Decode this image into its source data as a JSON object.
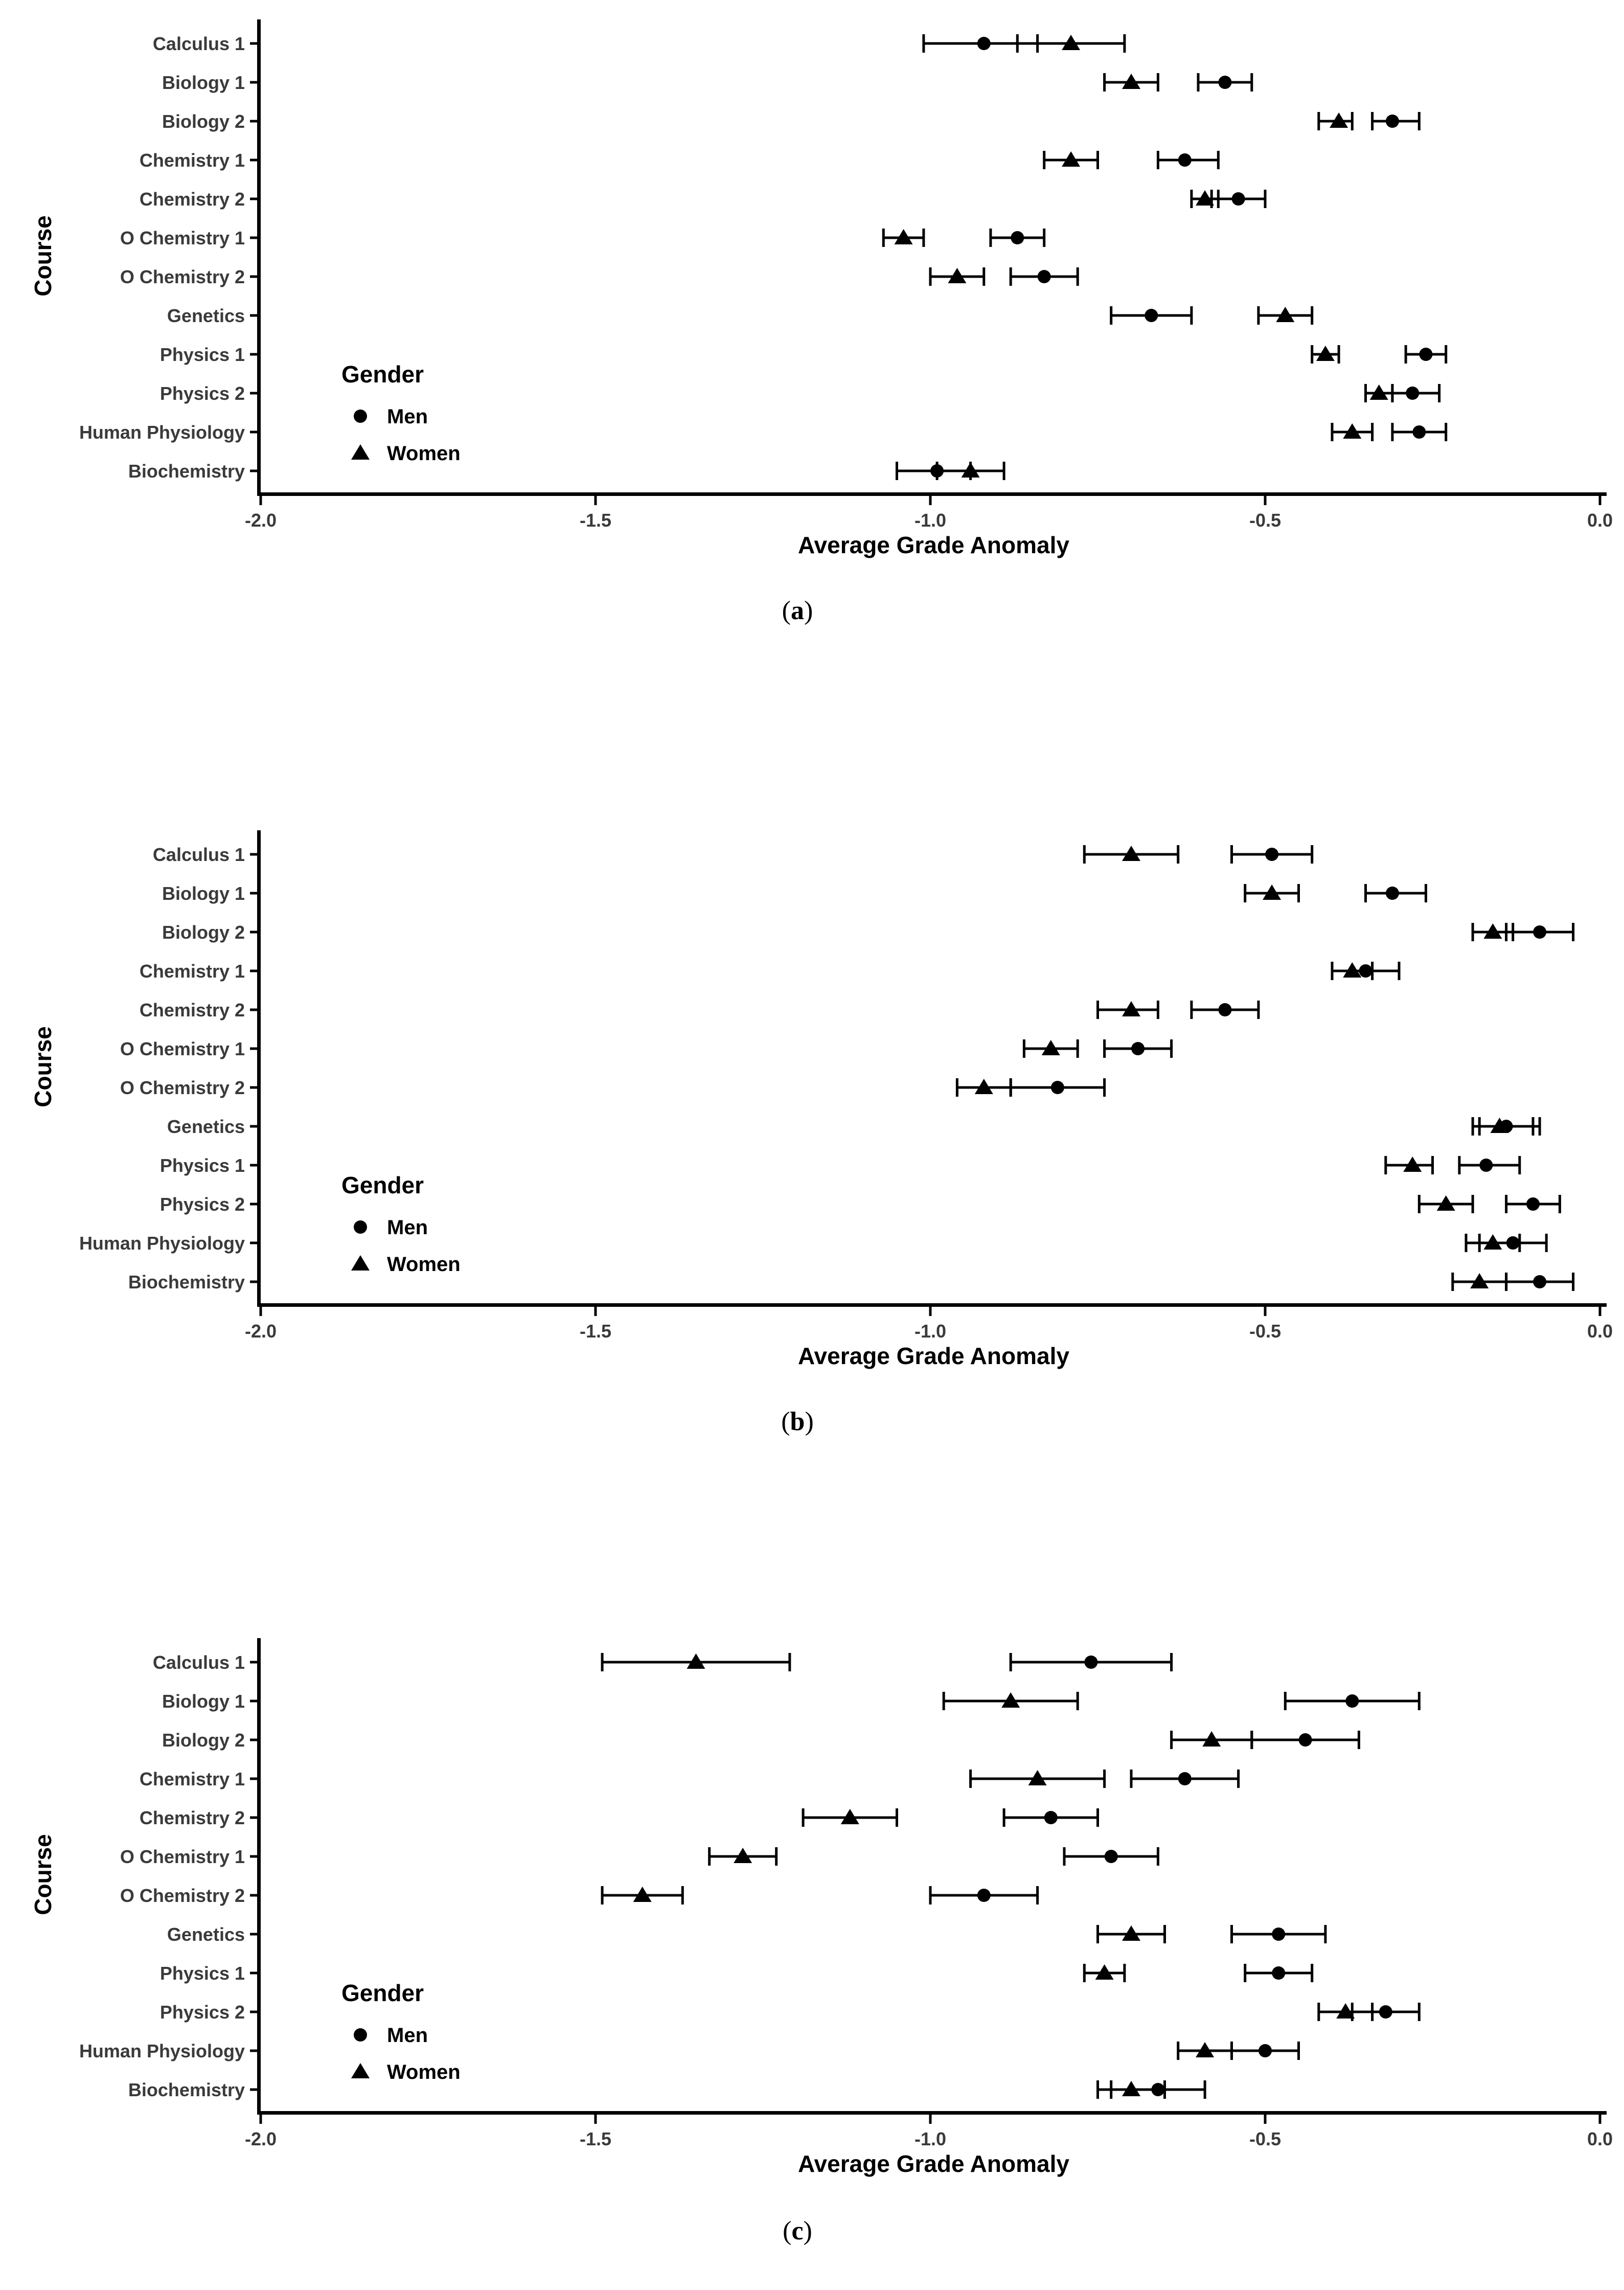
{
  "figure": {
    "captions": [
      {
        "prefix": "(",
        "letter": "a",
        "suffix": ")"
      },
      {
        "prefix": "(",
        "letter": "b",
        "suffix": ")"
      },
      {
        "prefix": "(",
        "letter": "c",
        "suffix": ")"
      }
    ]
  },
  "style": {
    "marker_color": "#000000",
    "axis_color": "#000000",
    "tick_text_color": "#3a3a3a",
    "title_text_color": "#000000",
    "background": "#ffffff"
  },
  "chart_data": [
    {
      "id": "a",
      "type": "scatter",
      "subtype": "dot-plot-with-error-bars",
      "title": "",
      "xlabel": "Average Grade Anomaly",
      "ylabel": "Course",
      "xlim": [
        -2.0,
        0.0
      ],
      "xticks": [
        -2.0,
        -1.5,
        -1.0,
        -0.5,
        0.0
      ],
      "xtick_labels": [
        "-2.0",
        "-1.5",
        "-1.0",
        "-0.5",
        "0.0"
      ],
      "grid": false,
      "categories": [
        "Calculus 1",
        "Biology 1",
        "Biology 2",
        "Chemistry 1",
        "Chemistry 2",
        "O Chemistry 1",
        "O Chemistry 2",
        "Genetics",
        "Physics 1",
        "Physics 2",
        "Human Physiology",
        "Biochemistry"
      ],
      "legend": {
        "title": "Gender",
        "position": "inside-lower-left",
        "entries": [
          {
            "label": "Men",
            "marker": "circle"
          },
          {
            "label": "Women",
            "marker": "triangle"
          }
        ]
      },
      "series": [
        {
          "name": "Men",
          "marker": "circle",
          "values": [
            -0.92,
            -0.56,
            -0.31,
            -0.62,
            -0.54,
            -0.87,
            -0.83,
            -0.67,
            -0.26,
            -0.28,
            -0.27,
            -0.99
          ],
          "ci_low": [
            -1.01,
            -0.6,
            -0.34,
            -0.66,
            -0.58,
            -0.91,
            -0.88,
            -0.73,
            -0.29,
            -0.31,
            -0.31,
            -1.05
          ],
          "ci_high": [
            -0.84,
            -0.52,
            -0.27,
            -0.57,
            -0.5,
            -0.83,
            -0.78,
            -0.61,
            -0.23,
            -0.24,
            -0.23,
            -0.94
          ]
        },
        {
          "name": "Women",
          "marker": "triangle",
          "values": [
            -0.79,
            -0.7,
            -0.39,
            -0.79,
            -0.59,
            -1.04,
            -0.96,
            -0.47,
            -0.41,
            -0.33,
            -0.37,
            -0.94
          ],
          "ci_low": [
            -0.87,
            -0.74,
            -0.42,
            -0.83,
            -0.61,
            -1.07,
            -1.0,
            -0.51,
            -0.43,
            -0.35,
            -0.4,
            -0.99
          ],
          "ci_high": [
            -0.71,
            -0.66,
            -0.37,
            -0.75,
            -0.57,
            -1.01,
            -0.92,
            -0.43,
            -0.39,
            -0.31,
            -0.34,
            -0.89
          ]
        }
      ]
    },
    {
      "id": "b",
      "type": "scatter",
      "subtype": "dot-plot-with-error-bars",
      "title": "",
      "xlabel": "Average Grade Anomaly",
      "ylabel": "Course",
      "xlim": [
        -2.0,
        0.0
      ],
      "xticks": [
        -2.0,
        -1.5,
        -1.0,
        -0.5,
        0.0
      ],
      "xtick_labels": [
        "-2.0",
        "-1.5",
        "-1.0",
        "-0.5",
        "0.0"
      ],
      "grid": false,
      "categories": [
        "Calculus 1",
        "Biology 1",
        "Biology 2",
        "Chemistry 1",
        "Chemistry 2",
        "O Chemistry 1",
        "O Chemistry 2",
        "Genetics",
        "Physics 1",
        "Physics 2",
        "Human Physiology",
        "Biochemistry"
      ],
      "legend": {
        "title": "Gender",
        "position": "inside-lower-left",
        "entries": [
          {
            "label": "Men",
            "marker": "circle"
          },
          {
            "label": "Women",
            "marker": "triangle"
          }
        ]
      },
      "series": [
        {
          "name": "Men",
          "marker": "circle",
          "values": [
            -0.49,
            -0.31,
            -0.09,
            -0.35,
            -0.56,
            -0.69,
            -0.81,
            -0.14,
            -0.17,
            -0.1,
            -0.13,
            -0.09
          ],
          "ci_low": [
            -0.55,
            -0.35,
            -0.14,
            -0.4,
            -0.61,
            -0.74,
            -0.88,
            -0.18,
            -0.21,
            -0.14,
            -0.18,
            -0.14
          ],
          "ci_high": [
            -0.43,
            -0.26,
            -0.04,
            -0.3,
            -0.51,
            -0.64,
            -0.74,
            -0.09,
            -0.12,
            -0.06,
            -0.08,
            -0.04
          ]
        },
        {
          "name": "Women",
          "marker": "triangle",
          "values": [
            -0.7,
            -0.49,
            -0.16,
            -0.37,
            -0.7,
            -0.82,
            -0.92,
            -0.15,
            -0.28,
            -0.23,
            -0.16,
            -0.18
          ],
          "ci_low": [
            -0.77,
            -0.53,
            -0.19,
            -0.4,
            -0.75,
            -0.86,
            -0.96,
            -0.19,
            -0.32,
            -0.27,
            -0.2,
            -0.22
          ],
          "ci_high": [
            -0.63,
            -0.45,
            -0.13,
            -0.34,
            -0.66,
            -0.78,
            -0.88,
            -0.1,
            -0.25,
            -0.19,
            -0.12,
            -0.14
          ]
        }
      ]
    },
    {
      "id": "c",
      "type": "scatter",
      "subtype": "dot-plot-with-error-bars",
      "title": "",
      "xlabel": "Average Grade Anomaly",
      "ylabel": "Course",
      "xlim": [
        -2.0,
        0.0
      ],
      "xticks": [
        -2.0,
        -1.5,
        -1.0,
        -0.5,
        0.0
      ],
      "xtick_labels": [
        "-2.0",
        "-1.5",
        "-1.0",
        "-0.5",
        "0.0"
      ],
      "grid": false,
      "categories": [
        "Calculus 1",
        "Biology 1",
        "Biology 2",
        "Chemistry 1",
        "Chemistry 2",
        "O Chemistry 1",
        "O Chemistry 2",
        "Genetics",
        "Physics 1",
        "Physics 2",
        "Human Physiology",
        "Biochemistry"
      ],
      "legend": {
        "title": "Gender",
        "position": "inside-lower-left",
        "entries": [
          {
            "label": "Men",
            "marker": "circle"
          },
          {
            "label": "Women",
            "marker": "triangle"
          }
        ]
      },
      "series": [
        {
          "name": "Men",
          "marker": "circle",
          "values": [
            -0.76,
            -0.37,
            -0.44,
            -0.62,
            -0.82,
            -0.73,
            -0.92,
            -0.48,
            -0.48,
            -0.32,
            -0.5,
            -0.66
          ],
          "ci_low": [
            -0.88,
            -0.47,
            -0.52,
            -0.7,
            -0.89,
            -0.8,
            -1.0,
            -0.55,
            -0.53,
            -0.37,
            -0.55,
            -0.73
          ],
          "ci_high": [
            -0.64,
            -0.27,
            -0.36,
            -0.54,
            -0.75,
            -0.66,
            -0.84,
            -0.41,
            -0.43,
            -0.27,
            -0.45,
            -0.59
          ]
        },
        {
          "name": "Women",
          "marker": "triangle",
          "values": [
            -1.35,
            -0.88,
            -0.58,
            -0.84,
            -1.12,
            -1.28,
            -1.43,
            -0.7,
            -0.74,
            -0.38,
            -0.59,
            -0.7
          ],
          "ci_low": [
            -1.49,
            -0.98,
            -0.64,
            -0.94,
            -1.19,
            -1.33,
            -1.49,
            -0.75,
            -0.77,
            -0.42,
            -0.63,
            -0.75
          ],
          "ci_high": [
            -1.21,
            -0.78,
            -0.52,
            -0.74,
            -1.05,
            -1.23,
            -1.37,
            -0.65,
            -0.71,
            -0.34,
            -0.55,
            -0.65
          ]
        }
      ]
    }
  ]
}
